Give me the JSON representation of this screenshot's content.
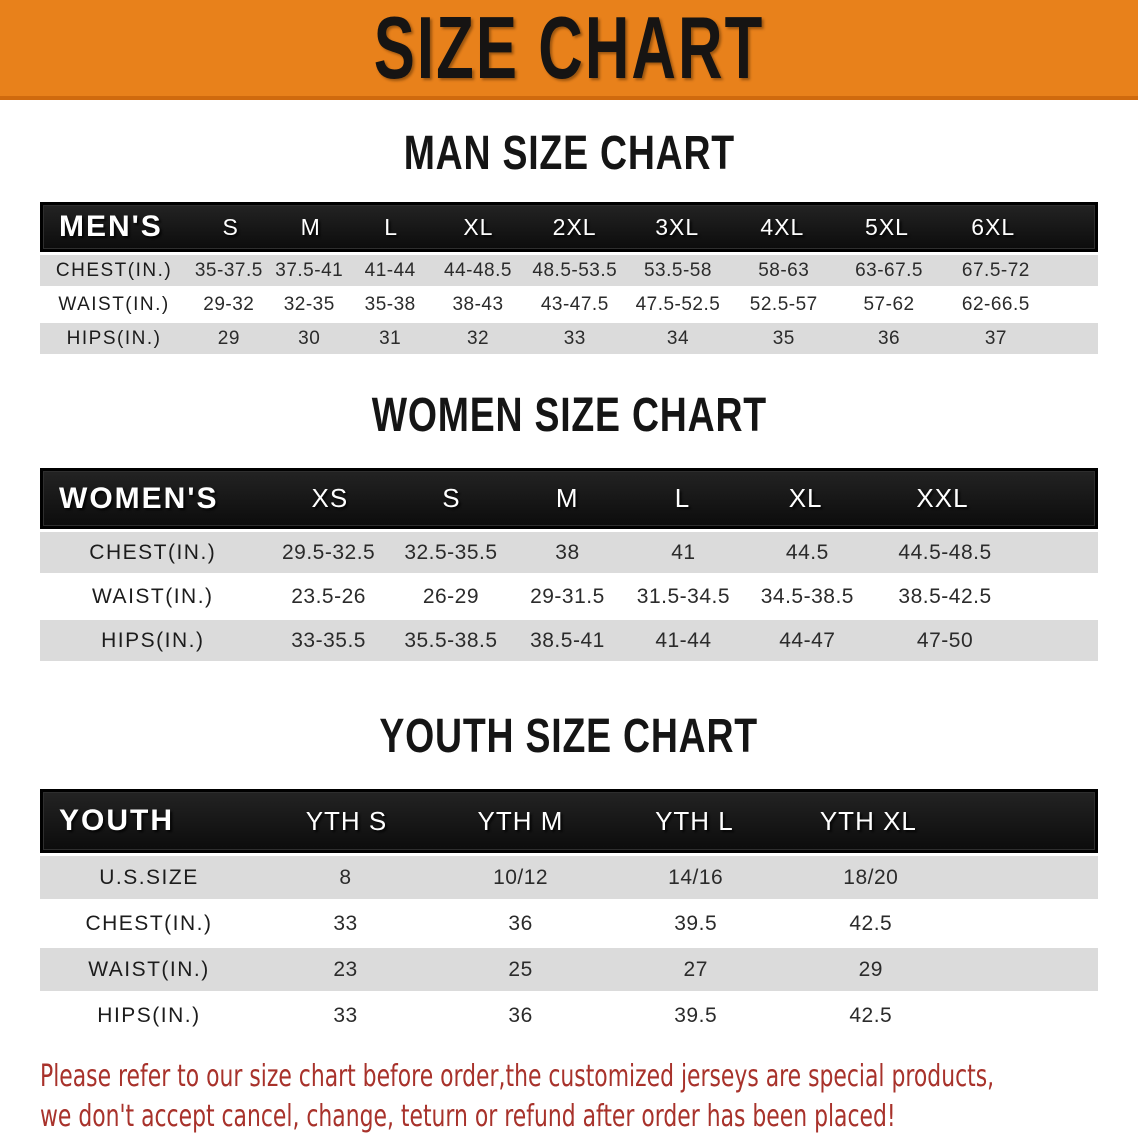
{
  "banner": {
    "title": "SIZE CHART",
    "bg_color": "#e8811b",
    "text_color": "#161413"
  },
  "sections": [
    {
      "heading": "MAN SIZE CHART",
      "table": {
        "header_label": "MEN'S",
        "columns": [
          "S",
          "M",
          "L",
          "XL",
          "2XL",
          "3XL",
          "4XL",
          "5XL",
          "6XL"
        ],
        "rows": [
          {
            "label": "CHEST(IN.)",
            "values": [
              "35-37.5",
              "37.5-41",
              "41-44",
              "44-48.5",
              "48.5-53.5",
              "53.5-58",
              "58-63",
              "63-67.5",
              "67.5-72"
            ]
          },
          {
            "label": "WAIST(IN.)",
            "values": [
              "29-32",
              "32-35",
              "35-38",
              "38-43",
              "43-47.5",
              "47.5-52.5",
              "52.5-57",
              "57-62",
              "62-66.5"
            ]
          },
          {
            "label": "HIPS(IN.)",
            "values": [
              "29",
              "30",
              "31",
              "32",
              "33",
              "34",
              "35",
              "36",
              "37"
            ]
          }
        ]
      }
    },
    {
      "heading": "WOMEN SIZE CHART",
      "table": {
        "header_label": "WOMEN'S",
        "columns": [
          "XS",
          "S",
          "M",
          "L",
          "XL",
          "XXL"
        ],
        "rows": [
          {
            "label": "CHEST(IN.)",
            "values": [
              "29.5-32.5",
              "32.5-35.5",
              "38",
              "41",
              "44.5",
              "44.5-48.5"
            ]
          },
          {
            "label": "WAIST(IN.)",
            "values": [
              "23.5-26",
              "26-29",
              "29-31.5",
              "31.5-34.5",
              "34.5-38.5",
              "38.5-42.5"
            ]
          },
          {
            "label": "HIPS(IN.)",
            "values": [
              "33-35.5",
              "35.5-38.5",
              "38.5-41",
              "41-44",
              "44-47",
              "47-50"
            ]
          }
        ]
      }
    },
    {
      "heading": "YOUTH SIZE CHART",
      "table": {
        "header_label": "YOUTH",
        "columns": [
          "YTH S",
          "YTH M",
          "YTH L",
          "YTH XL"
        ],
        "rows": [
          {
            "label": "U.S.SIZE",
            "values": [
              "8",
              "10/12",
              "14/16",
              "18/20"
            ]
          },
          {
            "label": "CHEST(IN.)",
            "values": [
              "33",
              "36",
              "39.5",
              "42.5"
            ]
          },
          {
            "label": "WAIST(IN.)",
            "values": [
              "23",
              "25",
              "27",
              "29"
            ]
          },
          {
            "label": "HIPS(IN.)",
            "values": [
              "33",
              "36",
              "39.5",
              "42.5"
            ]
          }
        ]
      }
    }
  ],
  "footer": {
    "line1": "Please refer to our size chart before order,the customized jerseys are special products,",
    "line2": "we don't accept cancel, change, teturn or refund after order has been placed!",
    "text_color": "#a8322b"
  },
  "colors": {
    "banner_orange": "#e8811b",
    "table_header_black": "#121212",
    "row_gray": "#dbdbdb",
    "row_white": "#ffffff",
    "note_red": "#a8322b"
  }
}
